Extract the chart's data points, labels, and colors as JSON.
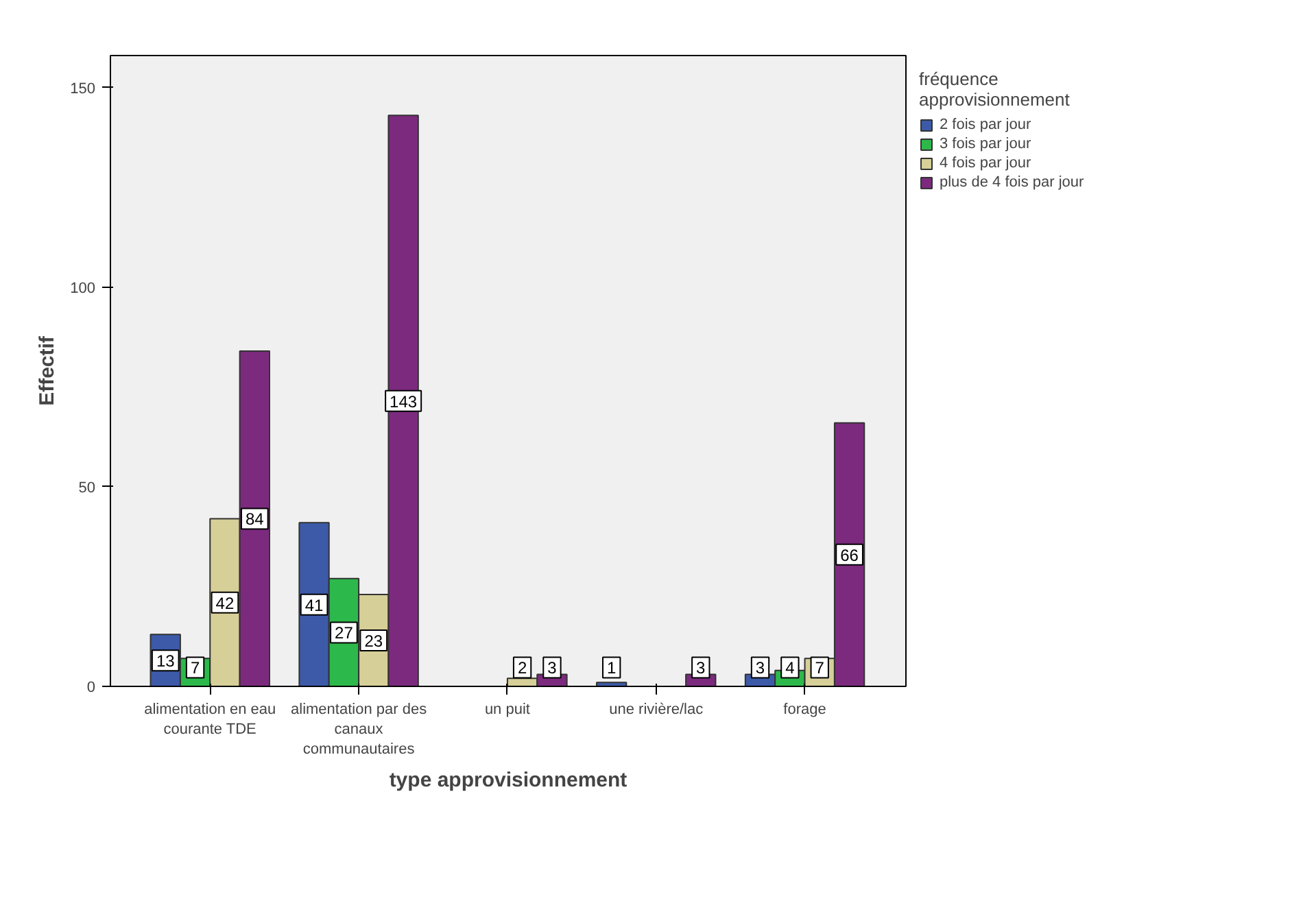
{
  "chart_data": {
    "type": "bar",
    "xlabel": "type approvisionnement",
    "ylabel": "Effectif",
    "legend_title": "fréquence approvisionnement",
    "categories": [
      "alimentation en eau courante TDE",
      "alimentation par des canaux communautaires",
      "un puit",
      "une rivière/lac",
      "forage"
    ],
    "series": [
      {
        "name": "2 fois par jour",
        "color": "#3c5aa8",
        "values": [
          13,
          41,
          null,
          1,
          3
        ]
      },
      {
        "name": "3 fois par jour",
        "color": "#2db84b",
        "values": [
          7,
          27,
          null,
          null,
          4
        ]
      },
      {
        "name": "4 fois par jour",
        "color": "#d6cf98",
        "values": [
          42,
          23,
          2,
          null,
          7
        ]
      },
      {
        "name": "plus de 4 fois par jour",
        "color": "#7b2a7e",
        "values": [
          84,
          143,
          3,
          3,
          66
        ]
      }
    ],
    "ylim": [
      0,
      158
    ],
    "yticks": [
      0,
      50,
      100,
      150
    ],
    "grid": false,
    "legend": "right",
    "data_labels": true
  }
}
